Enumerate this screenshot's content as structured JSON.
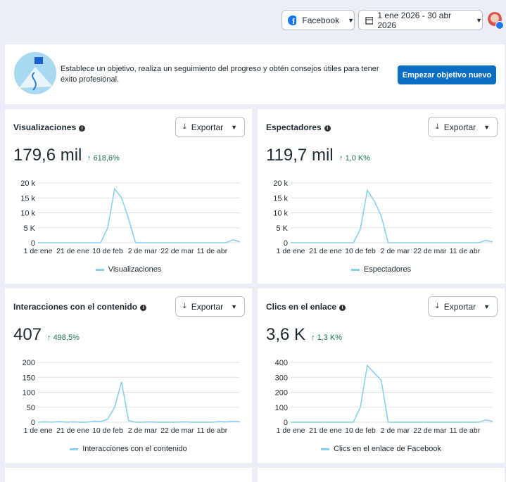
{
  "header": {
    "platform": "Facebook",
    "date_range": "1 ene 2026 - 30 abr 2026"
  },
  "banner": {
    "text": "Establece un objetivo, realiza un seguimiento del progreso y obtén consejos útiles para tener éxito profesional.",
    "button": "Empezar objetivo nuevo"
  },
  "cards": [
    {
      "title": "Visualizaciones",
      "total": "179,6 mil",
      "change": "618,6%",
      "export": "Exportar",
      "chart_data": {
        "type": "line",
        "categories": [
          "1 de ene",
          null,
          null,
          null,
          null,
          "21 de ene",
          null,
          null,
          null,
          null,
          "10 de feb",
          null,
          null,
          null,
          null,
          "2 de mar",
          null,
          null,
          null,
          null,
          "22 de mar",
          null,
          null,
          null,
          null,
          "11 de abr",
          null,
          null,
          null,
          null
        ],
        "series": [
          {
            "name": "Visualizaciones",
            "color": "#8ad0ee",
            "values": [
              0,
              0,
              0,
              0,
              0,
              0,
              0,
              0,
              0,
              0,
              5000,
              18000,
              15000,
              8000,
              0,
              0,
              0,
              0,
              0,
              0,
              0,
              0,
              0,
              0,
              0,
              0,
              0,
              0,
              1000,
              300
            ]
          }
        ],
        "ylim": [
          0,
          20000
        ],
        "yticks": [
          0,
          {
            "value": 5000,
            "label": "5 K"
          },
          {
            "value": 10000,
            "label": "10 k"
          },
          {
            "value": 15000,
            "label": "15 k"
          },
          {
            "value": 20000,
            "label": "20 k"
          }
        ]
      }
    },
    {
      "title": "Espectadores",
      "total": "119,7 mil",
      "change": "1,0 K%",
      "export": "Exportar",
      "chart_data": {
        "type": "line",
        "categories": [
          "1 de ene",
          null,
          null,
          null,
          null,
          "21 de ene",
          null,
          null,
          null,
          null,
          "10 de feb",
          null,
          null,
          null,
          null,
          "2 de mar",
          null,
          null,
          null,
          null,
          "22 de mar",
          null,
          null,
          null,
          null,
          "11 de abr",
          null,
          null,
          null,
          null
        ],
        "series": [
          {
            "name": "Espectadores",
            "color": "#8ad0ee",
            "values": [
              0,
              0,
              0,
              0,
              0,
              0,
              0,
              0,
              0,
              0,
              4500,
              17500,
              14000,
              9000,
              0,
              0,
              0,
              0,
              0,
              0,
              0,
              0,
              0,
              0,
              0,
              0,
              0,
              0,
              800,
              300
            ]
          }
        ],
        "ylim": [
          0,
          20000
        ],
        "yticks": [
          0,
          {
            "value": 5000,
            "label": "5 K"
          },
          {
            "value": 10000,
            "label": "10 k"
          },
          {
            "value": 15000,
            "label": "15 k"
          },
          {
            "value": 20000,
            "label": "20 k"
          }
        ]
      }
    },
    {
      "title": "Interacciones con el contenido",
      "total": "407",
      "change": "498,5%",
      "export": "Exportar",
      "chart_data": {
        "type": "line",
        "categories": [
          "1 de ene",
          null,
          null,
          null,
          null,
          "21 de ene",
          null,
          null,
          null,
          null,
          "10 de feb",
          null,
          null,
          null,
          null,
          "2 de mar",
          null,
          null,
          null,
          null,
          "22 de mar",
          null,
          null,
          null,
          null,
          "11 de abr",
          null,
          null,
          null,
          null
        ],
        "series": [
          {
            "name": "Interacciones con el contenido",
            "color": "#8ad0ee",
            "values": [
              0,
              1,
              0,
              2,
              0,
              1,
              0,
              0,
              3,
              2,
              10,
              50,
              135,
              5,
              0,
              0,
              1,
              0,
              0,
              0,
              0,
              1,
              0,
              0,
              0,
              0,
              2,
              1,
              3,
              1
            ]
          }
        ],
        "ylim": [
          0,
          200
        ],
        "yticks": [
          0,
          50,
          100,
          150,
          200
        ]
      }
    },
    {
      "title": "Clics en el enlace",
      "total": "3,6 K",
      "change": "1,3 K%",
      "export": "Exportar",
      "chart_data": {
        "type": "line",
        "categories": [
          "1 de ene",
          null,
          null,
          null,
          null,
          "21 de ene",
          null,
          null,
          null,
          null,
          "10 de feb",
          null,
          null,
          null,
          null,
          "2 de mar",
          null,
          null,
          null,
          null,
          "22 de mar",
          null,
          null,
          null,
          null,
          "11 de abr",
          null,
          null,
          null,
          null
        ],
        "series": [
          {
            "name": "Clics en el enlace de Facebook",
            "color": "#8ad0ee",
            "values": [
              0,
              0,
              0,
              0,
              0,
              0,
              0,
              0,
              0,
              0,
              100,
              380,
              330,
              280,
              0,
              0,
              0,
              0,
              0,
              0,
              0,
              0,
              0,
              0,
              0,
              0,
              0,
              0,
              15,
              5
            ]
          }
        ],
        "ylim": [
          0,
          400
        ],
        "yticks": [
          0,
          100,
          200,
          300,
          400
        ]
      }
    }
  ]
}
